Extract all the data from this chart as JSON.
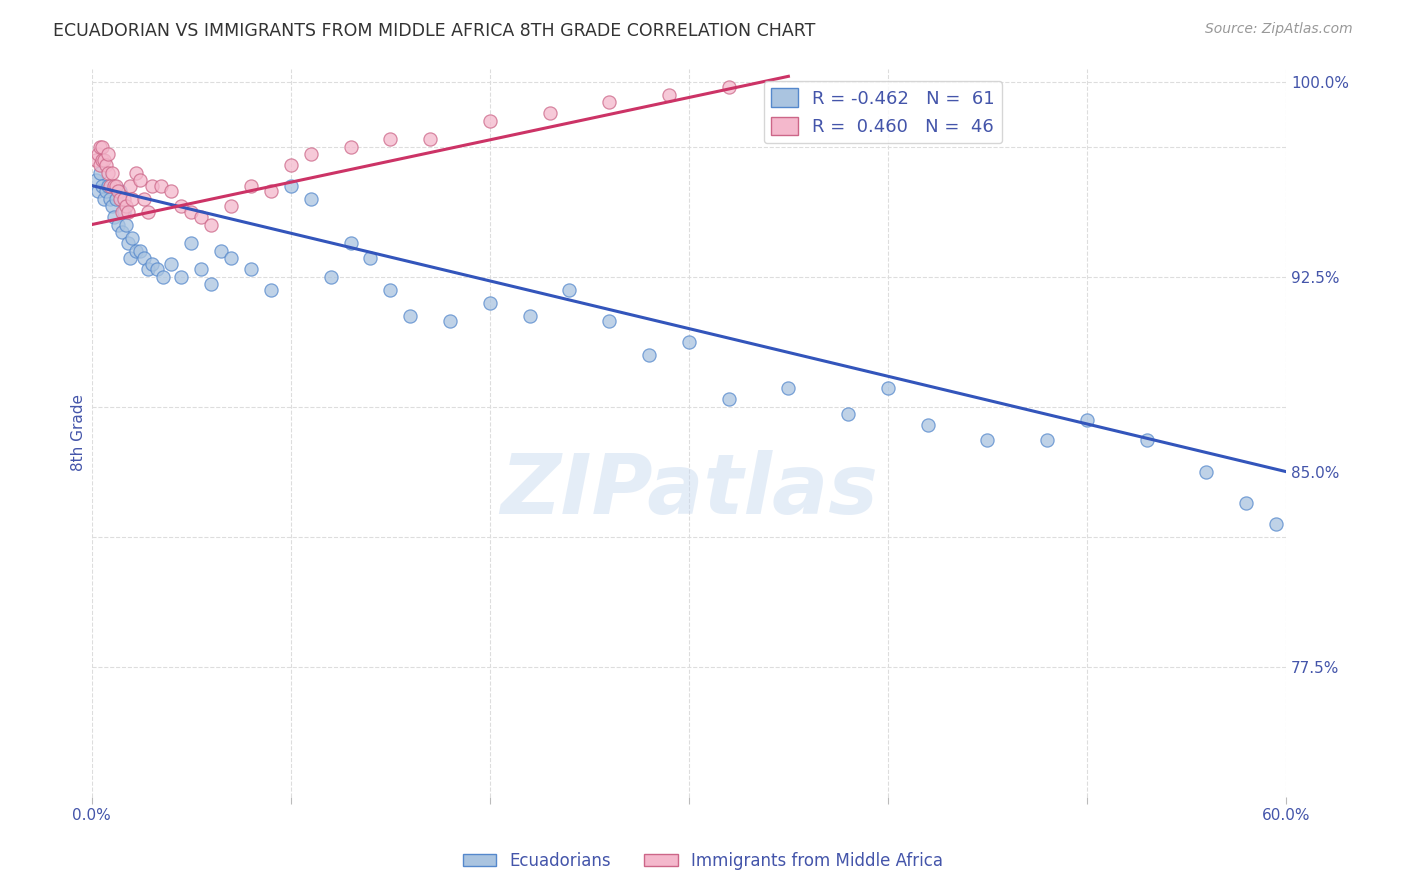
{
  "title": "ECUADORIAN VS IMMIGRANTS FROM MIDDLE AFRICA 8TH GRADE CORRELATION CHART",
  "source": "Source: ZipAtlas.com",
  "ylabel": "8th Grade",
  "xlim": [
    0.0,
    0.6
  ],
  "ylim": [
    0.725,
    1.005
  ],
  "right_ytick_positions": [
    0.775,
    0.85,
    0.925,
    1.0
  ],
  "right_ytick_labels": [
    "77.5%",
    "85.0%",
    "92.5%",
    "100.0%"
  ],
  "R_blue": -0.462,
  "N_blue": 61,
  "R_pink": 0.46,
  "N_pink": 46,
  "blue_color": "#aac4e0",
  "blue_edge_color": "#5588cc",
  "pink_color": "#f4b8cc",
  "pink_edge_color": "#cc6688",
  "blue_line_color": "#3355bb",
  "pink_line_color": "#cc3366",
  "blue_scatter_x": [
    0.002,
    0.003,
    0.004,
    0.005,
    0.006,
    0.007,
    0.008,
    0.009,
    0.01,
    0.011,
    0.012,
    0.013,
    0.014,
    0.015,
    0.016,
    0.017,
    0.018,
    0.019,
    0.02,
    0.022,
    0.024,
    0.026,
    0.028,
    0.03,
    0.033,
    0.036,
    0.04,
    0.045,
    0.05,
    0.055,
    0.06,
    0.065,
    0.07,
    0.08,
    0.09,
    0.1,
    0.11,
    0.12,
    0.13,
    0.14,
    0.15,
    0.16,
    0.18,
    0.2,
    0.22,
    0.24,
    0.26,
    0.28,
    0.3,
    0.32,
    0.35,
    0.38,
    0.4,
    0.42,
    0.45,
    0.48,
    0.5,
    0.53,
    0.56,
    0.58,
    0.595
  ],
  "blue_scatter_y": [
    0.962,
    0.958,
    0.965,
    0.96,
    0.955,
    0.958,
    0.96,
    0.955,
    0.952,
    0.948,
    0.955,
    0.945,
    0.958,
    0.942,
    0.95,
    0.945,
    0.938,
    0.932,
    0.94,
    0.935,
    0.935,
    0.932,
    0.928,
    0.93,
    0.928,
    0.925,
    0.93,
    0.925,
    0.938,
    0.928,
    0.922,
    0.935,
    0.932,
    0.928,
    0.92,
    0.96,
    0.955,
    0.925,
    0.938,
    0.932,
    0.92,
    0.91,
    0.908,
    0.915,
    0.91,
    0.92,
    0.908,
    0.895,
    0.9,
    0.878,
    0.882,
    0.872,
    0.882,
    0.868,
    0.862,
    0.862,
    0.87,
    0.862,
    0.85,
    0.838,
    0.83
  ],
  "pink_scatter_x": [
    0.002,
    0.003,
    0.004,
    0.004,
    0.005,
    0.005,
    0.006,
    0.007,
    0.008,
    0.008,
    0.009,
    0.01,
    0.011,
    0.012,
    0.013,
    0.014,
    0.015,
    0.016,
    0.017,
    0.018,
    0.019,
    0.02,
    0.022,
    0.024,
    0.026,
    0.028,
    0.03,
    0.035,
    0.04,
    0.045,
    0.05,
    0.055,
    0.06,
    0.07,
    0.08,
    0.09,
    0.1,
    0.11,
    0.13,
    0.15,
    0.17,
    0.2,
    0.23,
    0.26,
    0.29,
    0.32
  ],
  "pink_scatter_y": [
    0.97,
    0.972,
    0.968,
    0.975,
    0.97,
    0.975,
    0.97,
    0.968,
    0.972,
    0.965,
    0.96,
    0.965,
    0.96,
    0.96,
    0.958,
    0.955,
    0.95,
    0.955,
    0.952,
    0.95,
    0.96,
    0.955,
    0.965,
    0.962,
    0.955,
    0.95,
    0.96,
    0.96,
    0.958,
    0.952,
    0.95,
    0.948,
    0.945,
    0.952,
    0.96,
    0.958,
    0.968,
    0.972,
    0.975,
    0.978,
    0.978,
    0.985,
    0.988,
    0.992,
    0.995,
    0.998
  ],
  "blue_line_x": [
    0.0,
    0.6
  ],
  "blue_line_y": [
    0.96,
    0.85
  ],
  "pink_line_x": [
    0.0,
    0.35
  ],
  "pink_line_y": [
    0.945,
    1.002
  ],
  "watermark": "ZIPatlas",
  "legend_blue_label": "R = -0.462   N =  61",
  "legend_pink_label": "R =  0.460   N =  46",
  "bottom_legend_blue": "Ecuadorians",
  "bottom_legend_pink": "Immigrants from Middle Africa",
  "background_color": "#ffffff",
  "grid_color": "#dddddd",
  "title_color": "#333333",
  "tick_color": "#4455aa"
}
